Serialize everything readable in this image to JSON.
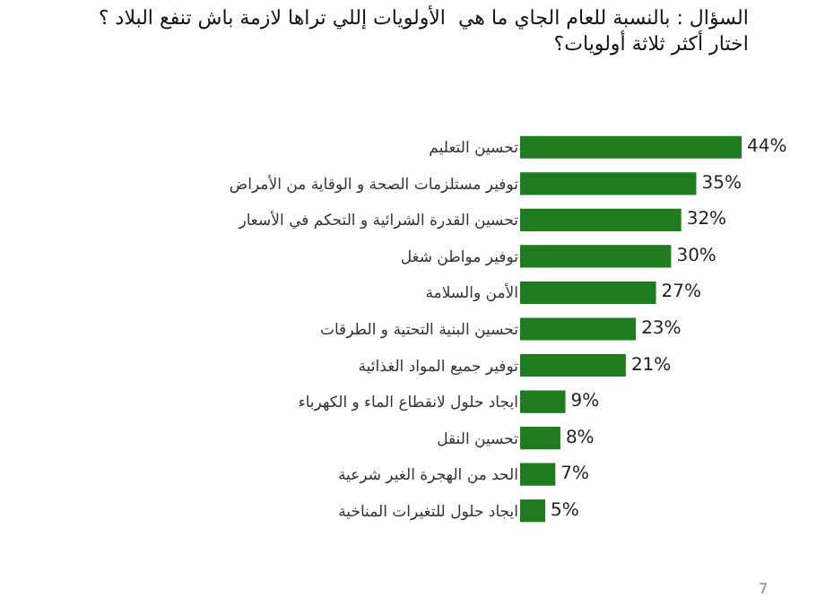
{
  "chart_data": {
    "type": "bar",
    "orientation": "horizontal",
    "title": "السؤال : بالنسبة للعام الجاي ما هي  الأولويات إللي تراها لازمة باش تنفع البلاد ؟\nاختار أكثر ثلاثة أولويات؟",
    "categories": [
      "تحسين التعليم",
      "توفير مستلزمات الصحة و الوقاية من الأمراض",
      "تحسين القدرة الشرائية و التحكم في الأسعار",
      "توفير مواطن شغل",
      "الأمن والسلامة",
      "تحسين البنية التحتية و الطرقات",
      "توفير جميع المواد الغذائية",
      "ايجاد حلول لانقطاع الماء و الكهرباء",
      "تحسين النقل",
      "الحد من الهجرة الغير شرعية",
      "ايجاد حلول للتغيرات المناخية"
    ],
    "values": [
      44,
      35,
      32,
      30,
      27,
      23,
      21,
      9,
      8,
      7,
      5
    ],
    "value_labels": [
      "44%",
      "35%",
      "32%",
      "30%",
      "27%",
      "23%",
      "21%",
      "9%",
      "8%",
      "7%",
      "5%"
    ],
    "color": "#1e7b1e",
    "legend": false,
    "tick_labels": "y",
    "annotations": [
      "7"
    ]
  }
}
